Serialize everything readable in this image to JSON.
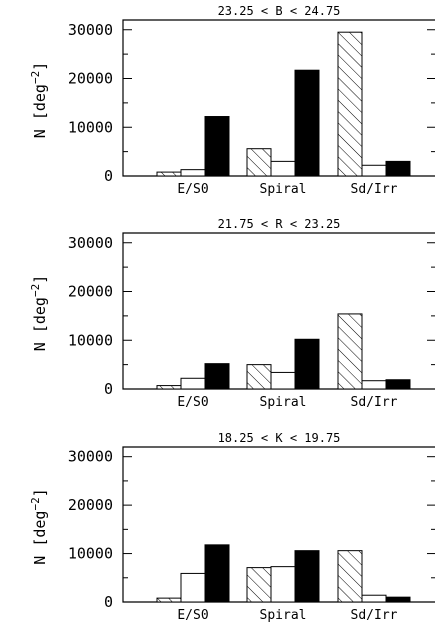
{
  "chart_data": [
    {
      "type": "bar",
      "title": "23.25 < B < 24.75",
      "ylabel": "N [deg⁻²]",
      "ylabel_main": "N [deg",
      "ylabel_exp": "−2",
      "ylabel_close": "]",
      "ylim": [
        0,
        32000
      ],
      "yticks": [
        0,
        10000,
        20000,
        30000
      ],
      "ytick_labels": [
        "0",
        "10000",
        "20000",
        "30000"
      ],
      "categories": [
        "E/S0",
        "Spiral",
        "Sd/Irr"
      ],
      "series": [
        {
          "style": "hatched",
          "values": [
            800,
            5600,
            29500
          ]
        },
        {
          "style": "open",
          "values": [
            1300,
            3000,
            2200
          ]
        },
        {
          "style": "filled",
          "values": [
            12200,
            21700,
            3000
          ]
        }
      ]
    },
    {
      "type": "bar",
      "title": "21.75 < R < 23.25",
      "ylabel": "N [deg⁻²]",
      "ylabel_main": "N [deg",
      "ylabel_exp": "−2",
      "ylabel_close": "]",
      "ylim": [
        0,
        32000
      ],
      "yticks": [
        0,
        10000,
        20000,
        30000
      ],
      "ytick_labels": [
        "0",
        "10000",
        "20000",
        "30000"
      ],
      "categories": [
        "E/S0",
        "Spiral",
        "Sd/Irr"
      ],
      "series": [
        {
          "style": "hatched",
          "values": [
            700,
            5000,
            15400
          ]
        },
        {
          "style": "open",
          "values": [
            2200,
            3400,
            1700
          ]
        },
        {
          "style": "filled",
          "values": [
            5200,
            10200,
            1900
          ]
        }
      ]
    },
    {
      "type": "bar",
      "title": "18.25 < K < 19.75",
      "ylabel": "N [deg⁻²]",
      "ylabel_main": "N [deg",
      "ylabel_exp": "−2",
      "ylabel_close": "]",
      "ylim": [
        0,
        32000
      ],
      "yticks": [
        0,
        10000,
        20000,
        30000
      ],
      "ytick_labels": [
        "0",
        "10000",
        "20000",
        "30000"
      ],
      "categories": [
        "E/S0",
        "Spiral",
        "Sd/Irr"
      ],
      "series": [
        {
          "style": "hatched",
          "values": [
            800,
            7100,
            10600
          ]
        },
        {
          "style": "open",
          "values": [
            5900,
            7300,
            1400
          ]
        },
        {
          "style": "filled",
          "values": [
            11800,
            10600,
            1000
          ]
        }
      ]
    }
  ]
}
